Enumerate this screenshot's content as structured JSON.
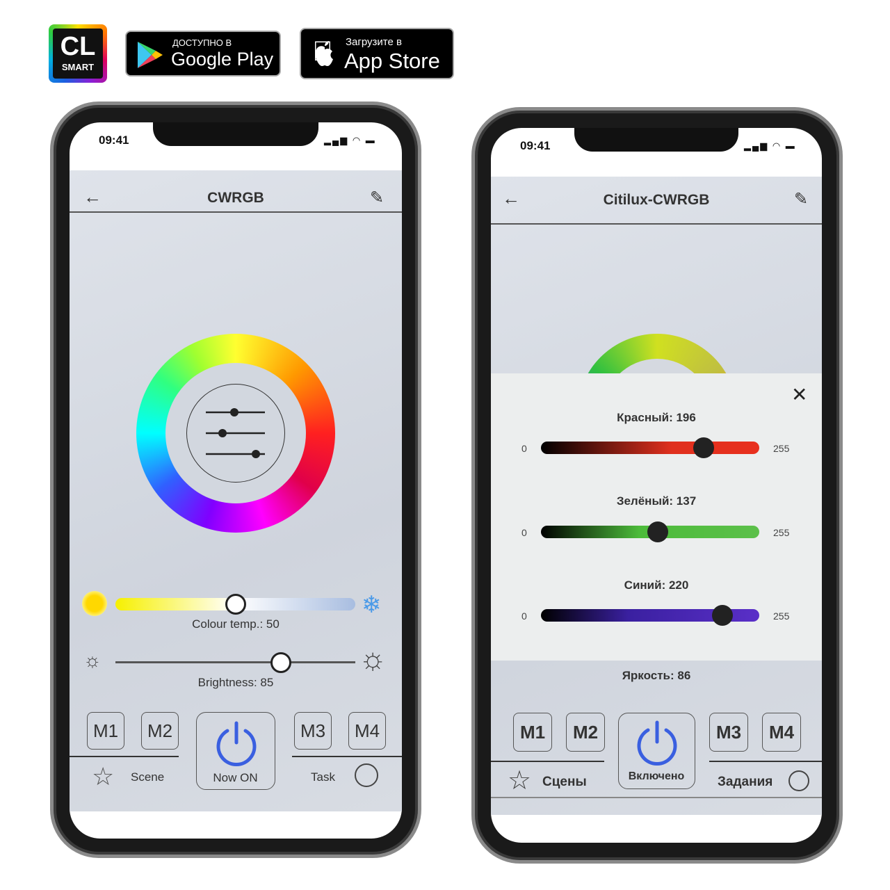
{
  "header_badges": {
    "logo": {
      "line1": "CL",
      "line2": "SMART"
    },
    "google_play": {
      "small": "ДОСТУПНО В",
      "big": "Google Play"
    },
    "app_store": {
      "small": "Загрузите в",
      "big": "App Store"
    }
  },
  "left_phone": {
    "time": "09:41",
    "title": "CWRGB",
    "icons": {
      "back": "arrow-left-icon",
      "edit": "pencil-icon",
      "center": "sliders-icon"
    },
    "colour_temp_label": "Colour temp.: 50",
    "colour_temp_value": 50,
    "brightness_label": "Brightness: 85",
    "brightness_value": 85,
    "memory_buttons": [
      "M1",
      "M2",
      "M3",
      "M4"
    ],
    "power_label": "Now ON",
    "scene_label": "Scene",
    "task_label": "Task",
    "accent": "#3a5fe0"
  },
  "right_phone": {
    "time": "09:41",
    "title": "Citilux-CWRGB",
    "sliders": [
      {
        "label": "Красный: 196",
        "value": 196,
        "min": "0",
        "max": "255",
        "color": "#e0301e"
      },
      {
        "label": "Зелёный: 137",
        "value": 137,
        "min": "0",
        "max": "255",
        "color": "#4cbb3a"
      },
      {
        "label": "Синий: 220",
        "value": 220,
        "min": "0",
        "max": "255",
        "color": "#5a2fc8"
      }
    ],
    "brightness_label": "Яркость: 86",
    "memory_buttons": [
      "M1",
      "M2",
      "M3",
      "M4"
    ],
    "power_label": "Включено",
    "scene_label": "Сцены",
    "task_label": "Задания",
    "close_icon": "close-icon"
  }
}
